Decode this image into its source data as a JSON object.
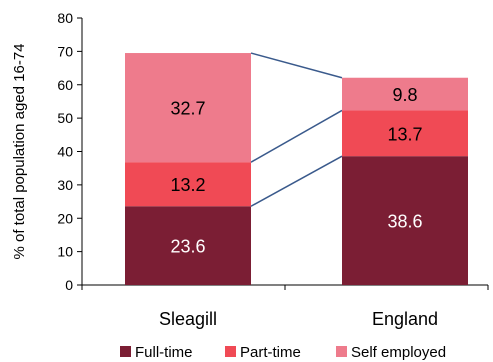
{
  "chart_data": {
    "type": "bar",
    "stacked": true,
    "categories": [
      "Sleagill",
      "England"
    ],
    "series": [
      {
        "name": "Full-time",
        "values": [
          23.6,
          38.6
        ],
        "color": "#7b1e34"
      },
      {
        "name": "Part-time",
        "values": [
          13.2,
          13.7
        ],
        "color": "#f04a55"
      },
      {
        "name": "Self employed",
        "values": [
          32.7,
          9.8
        ],
        "color": "#ee7b8c"
      }
    ],
    "title": "",
    "xlabel": "",
    "ylabel": "% of total population aged 16-74",
    "ylim": [
      0,
      80
    ],
    "yticks": [
      0,
      10,
      20,
      30,
      40,
      50,
      60,
      70,
      80
    ],
    "connector_color": "#3a5a8c",
    "grid": false,
    "legend_position": "bottom"
  }
}
